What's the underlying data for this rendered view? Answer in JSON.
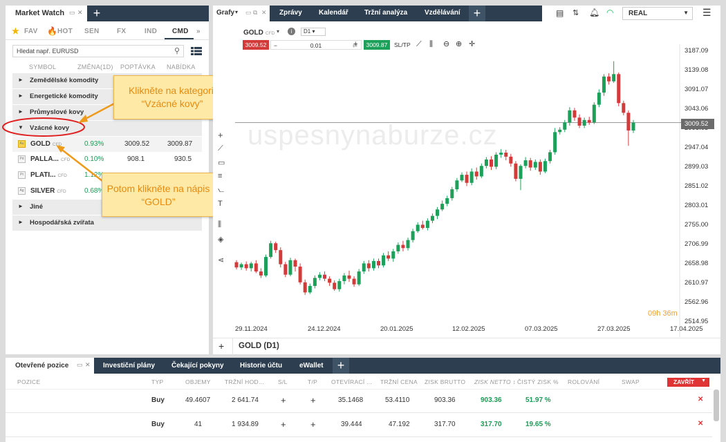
{
  "market_watch": {
    "title": "Market Watch",
    "tabs": [
      "FAV",
      "HOT",
      "SEN",
      "FX",
      "IND",
      "CMD"
    ],
    "search_placeholder": "Hledat např. EURUSD",
    "columns": [
      "SYMBOL",
      "ZMĚNA(1D)",
      "POPTÁVKA",
      "NABÍDKA"
    ],
    "groups_top": [
      "Zemědělské komodity",
      "Energetické komodity",
      "Průmyslové kovy",
      "Vzácné kovy"
    ],
    "symbols": [
      {
        "icon": "Au",
        "name": "GOLD",
        "cfd": "CFD",
        "change": "0.93%",
        "bid": "3009.52",
        "ask": "3009.87"
      },
      {
        "icon": "Pd",
        "name": "PALLA...",
        "cfd": "CFD",
        "change": "0.10%",
        "bid": "908.1",
        "ask": "930.5"
      },
      {
        "icon": "Pt",
        "name": "PLATI...",
        "cfd": "CFD",
        "change": "1.12%",
        "bid": "",
        "ask": ""
      },
      {
        "icon": "Ag",
        "name": "SILVER",
        "cfd": "CFD",
        "change": "0.68%",
        "bid": "",
        "ask": ""
      }
    ],
    "groups_bottom": [
      "Jiné",
      "Hospodářská zvířata"
    ]
  },
  "callouts": {
    "first": "Klikněte na kategorii “Vzácné kovy”",
    "second": "Potom klikněte na nápis “GOLD”"
  },
  "chart": {
    "tabs": [
      "Grafy",
      "Zprávy",
      "Kalendář",
      "Tržní analýza",
      "Vzdělávání"
    ],
    "account": "REAL",
    "symbol": "GOLD",
    "symbol_cfd": "CFD",
    "timeframe": "D1",
    "sell_price": "3009.52",
    "volume": "0.01",
    "buy_price": "3009.87",
    "sltp": "SL/TP",
    "watermark": "uspesnynaburze.cz",
    "current_price_label": "3009.52",
    "countdown_h": "09h",
    "countdown_m": "36m",
    "footer_title": "GOLD (D1)"
  },
  "chart_data": {
    "type": "candlestick",
    "y_ticks": [
      "3187.09",
      "3139.08",
      "3091.07",
      "3043.06",
      "2995.05",
      "2947.04",
      "2899.03",
      "2851.02",
      "2803.01",
      "2755.00",
      "2706.99",
      "2658.98",
      "2610.97",
      "2562.96",
      "2514.95"
    ],
    "x_ticks": [
      "29.11.2024",
      "24.12.2024",
      "20.01.2025",
      "12.02.2025",
      "07.03.2025",
      "27.03.2025",
      "17.04.2025"
    ],
    "ylim": [
      2514.95,
      3187.09
    ],
    "current_price": 3009.52,
    "candles": [
      [
        2663,
        2650,
        2668,
        2645
      ],
      [
        2650,
        2658,
        2662,
        2644
      ],
      [
        2658,
        2648,
        2665,
        2642
      ],
      [
        2648,
        2660,
        2664,
        2640
      ],
      [
        2660,
        2640,
        2668,
        2636
      ],
      [
        2640,
        2630,
        2648,
        2624
      ],
      [
        2630,
        2676,
        2682,
        2626
      ],
      [
        2676,
        2710,
        2716,
        2672
      ],
      [
        2710,
        2693,
        2714,
        2686
      ],
      [
        2693,
        2658,
        2700,
        2650
      ],
      [
        2658,
        2632,
        2664,
        2626
      ],
      [
        2632,
        2668,
        2674,
        2628
      ],
      [
        2668,
        2652,
        2672,
        2640
      ],
      [
        2652,
        2613,
        2660,
        2608
      ],
      [
        2613,
        2588,
        2620,
        2582
      ],
      [
        2588,
        2604,
        2610,
        2584
      ],
      [
        2604,
        2624,
        2630,
        2598
      ],
      [
        2624,
        2632,
        2638,
        2618
      ],
      [
        2632,
        2622,
        2640,
        2616
      ],
      [
        2622,
        2612,
        2628,
        2604
      ],
      [
        2612,
        2596,
        2618,
        2592
      ],
      [
        2596,
        2616,
        2622,
        2590
      ],
      [
        2616,
        2630,
        2636,
        2608
      ],
      [
        2630,
        2622,
        2642,
        2614
      ],
      [
        2622,
        2608,
        2628,
        2602
      ],
      [
        2608,
        2640,
        2646,
        2604
      ],
      [
        2640,
        2660,
        2666,
        2634
      ],
      [
        2660,
        2648,
        2668,
        2640
      ],
      [
        2648,
        2666,
        2672,
        2642
      ],
      [
        2666,
        2655,
        2672,
        2648
      ],
      [
        2655,
        2680,
        2686,
        2650
      ],
      [
        2680,
        2672,
        2690,
        2666
      ],
      [
        2672,
        2690,
        2696,
        2664
      ],
      [
        2690,
        2706,
        2712,
        2684
      ],
      [
        2706,
        2698,
        2716,
        2690
      ],
      [
        2698,
        2718,
        2724,
        2692
      ],
      [
        2718,
        2740,
        2746,
        2712
      ],
      [
        2740,
        2756,
        2762,
        2736
      ],
      [
        2756,
        2748,
        2766,
        2744
      ],
      [
        2748,
        2766,
        2772,
        2742
      ],
      [
        2766,
        2778,
        2784,
        2760
      ],
      [
        2778,
        2794,
        2800,
        2770
      ],
      [
        2794,
        2808,
        2816,
        2790
      ],
      [
        2808,
        2822,
        2828,
        2802
      ],
      [
        2822,
        2844,
        2850,
        2816
      ],
      [
        2844,
        2866,
        2872,
        2838
      ],
      [
        2866,
        2880,
        2886,
        2862
      ],
      [
        2880,
        2860,
        2888,
        2852
      ],
      [
        2860,
        2888,
        2896,
        2854
      ],
      [
        2888,
        2876,
        2898,
        2868
      ],
      [
        2876,
        2902,
        2908,
        2872
      ],
      [
        2902,
        2918,
        2924,
        2896
      ],
      [
        2918,
        2900,
        2926,
        2892
      ],
      [
        2900,
        2930,
        2936,
        2894
      ],
      [
        2930,
        2935,
        2944,
        2922
      ],
      [
        2935,
        2925,
        2942,
        2916
      ],
      [
        2925,
        2908,
        2932,
        2900
      ],
      [
        2908,
        2870,
        2914,
        2864
      ],
      [
        2870,
        2902,
        2906,
        2842
      ],
      [
        2902,
        2916,
        2924,
        2896
      ],
      [
        2916,
        2898,
        2922,
        2890
      ],
      [
        2898,
        2912,
        2918,
        2892
      ],
      [
        2912,
        2888,
        2918,
        2880
      ],
      [
        2888,
        2914,
        2920,
        2884
      ],
      [
        2914,
        2936,
        2942,
        2908
      ],
      [
        2936,
        2986,
        2996,
        2930
      ],
      [
        2986,
        2992,
        2998,
        2980
      ],
      [
        2992,
        3010,
        3016,
        2986
      ],
      [
        3010,
        3040,
        3048,
        3002
      ],
      [
        3040,
        3022,
        3046,
        3014
      ],
      [
        3022,
        3002,
        3030,
        2996
      ],
      [
        3002,
        3016,
        3022,
        2996
      ],
      [
        3016,
        3010,
        3024,
        3004
      ],
      [
        3010,
        3054,
        3060,
        3006
      ],
      [
        3054,
        3084,
        3092,
        3048
      ],
      [
        3084,
        3124,
        3130,
        3076
      ],
      [
        3124,
        3112,
        3132,
        3104
      ],
      [
        3112,
        3130,
        3162,
        3108
      ],
      [
        3130,
        3058,
        3134,
        3050
      ],
      [
        3058,
        3034,
        3064,
        3028
      ],
      [
        3034,
        2990,
        3040,
        2952
      ],
      [
        2990,
        3009.5,
        3016,
        2984
      ]
    ]
  },
  "positions": {
    "tabs": [
      "Otevřené pozice",
      "Investiční plány",
      "Čekající pokyny",
      "Historie účtu",
      "eWallet"
    ],
    "columns": [
      "POZICE",
      "TYP",
      "OBJEMY",
      "TRŽNÍ HOD...",
      "S/L",
      "T/P",
      "OTEVÍRACÍ ...",
      "TRŽNÍ CENA",
      "ZISK BRUTTO",
      "ZISK NETTO ↕",
      "ČISTÝ ZISK %",
      "ROLOVÁNÍ",
      "SWAP"
    ],
    "close_label": "ZAVŘÍT",
    "rows": [
      {
        "type": "Buy",
        "volume": "49.4607",
        "market_value": "2 641.74",
        "sl": "+",
        "tp": "+",
        "open": "35.1468",
        "price": "53.4110",
        "gross": "903.36",
        "net": "903.36",
        "pct": "51.97 %"
      },
      {
        "type": "Buy",
        "volume": "41",
        "market_value": "1 934.89",
        "sl": "+",
        "tp": "+",
        "open": "39.444",
        "price": "47.192",
        "gross": "317.70",
        "net": "317.70",
        "pct": "19.65 %"
      }
    ]
  },
  "colors": {
    "bull": "#1da05a",
    "bear": "#d33a3a",
    "nav": "#2c3e50",
    "accent": "#e43b3b"
  }
}
